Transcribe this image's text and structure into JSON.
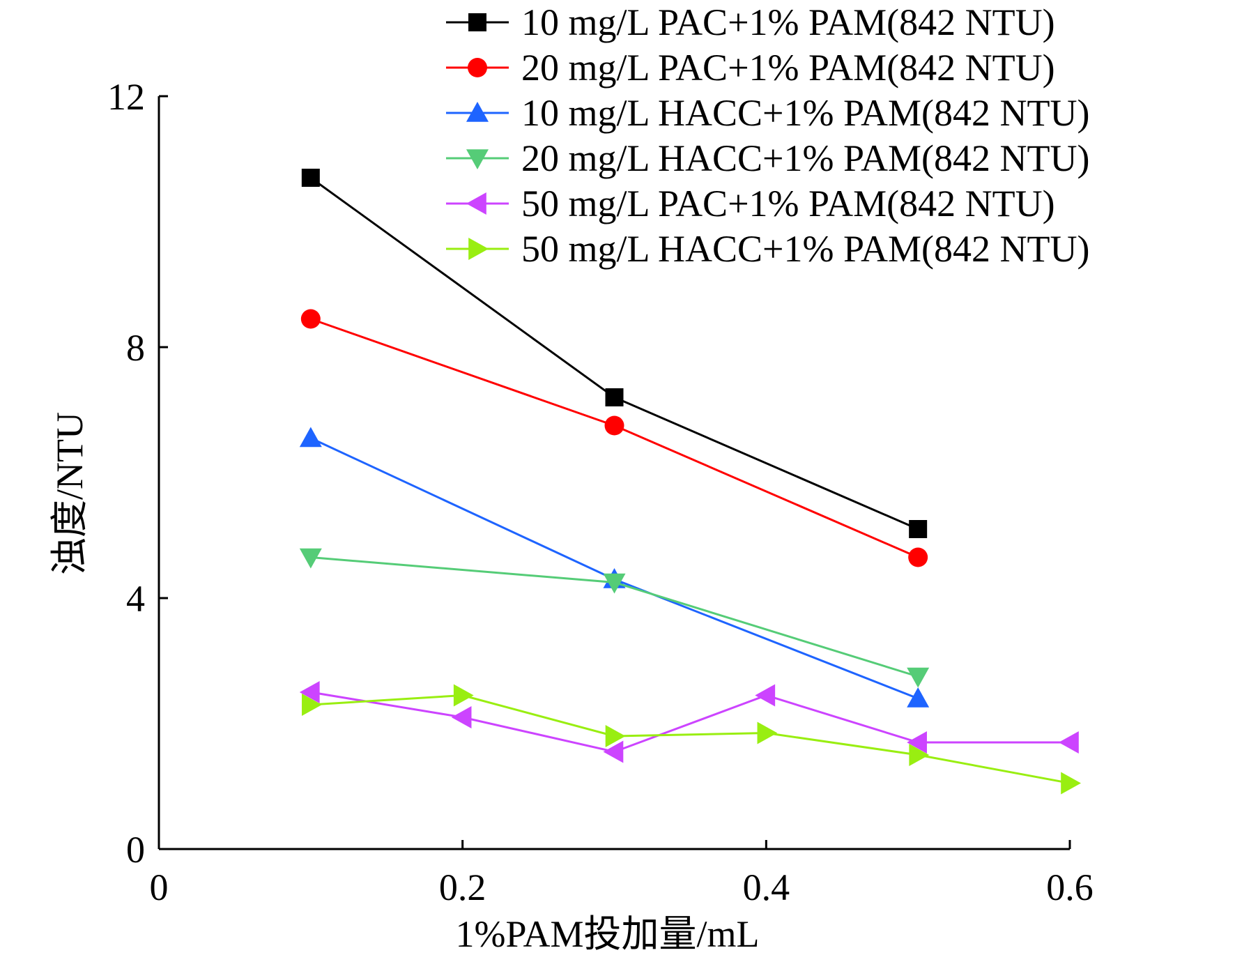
{
  "chart_data": {
    "type": "line",
    "xlabel": "1%PAM投加量/mL",
    "ylabel": "浊度/NTU",
    "xlim": [
      0,
      0.6
    ],
    "ylim": [
      0,
      12
    ],
    "xticks": [
      0,
      0.2,
      0.4,
      0.6
    ],
    "xtick_labels": [
      "0",
      "0.2",
      "0.4",
      "0.6"
    ],
    "yticks": [
      0,
      4,
      8,
      12
    ],
    "ytick_labels": [
      "0",
      "4",
      "8",
      "12"
    ],
    "grid": false,
    "legend_position": "top-right",
    "series": [
      {
        "name": "10 mg/L PAC+1% PAM(842 NTU)",
        "color": "#000000",
        "marker": "square",
        "x": [
          0.1,
          0.3,
          0.5
        ],
        "y": [
          10.7,
          7.2,
          5.1
        ]
      },
      {
        "name": "20 mg/L PAC+1% PAM(842 NTU)",
        "color": "#ff0000",
        "marker": "circle",
        "x": [
          0.1,
          0.3,
          0.5
        ],
        "y": [
          8.45,
          6.75,
          4.65
        ]
      },
      {
        "name": "10 mg/L HACC+1% PAM(842 NTU)",
        "color": "#1e64ff",
        "marker": "triangle-up",
        "x": [
          0.1,
          0.3,
          0.5
        ],
        "y": [
          6.55,
          4.3,
          2.4
        ]
      },
      {
        "name": "20 mg/L HACC+1% PAM(842 NTU)",
        "color": "#55cc77",
        "marker": "triangle-down",
        "x": [
          0.1,
          0.3,
          0.5
        ],
        "y": [
          4.65,
          4.25,
          2.75
        ]
      },
      {
        "name": "50 mg/L PAC+1% PAM(842 NTU)",
        "color": "#cc44ff",
        "marker": "triangle-left",
        "x": [
          0.1,
          0.2,
          0.3,
          0.4,
          0.5,
          0.6
        ],
        "y": [
          2.5,
          2.1,
          1.55,
          2.45,
          1.7,
          1.7
        ]
      },
      {
        "name": "50 mg/L HACC+1% PAM(842 NTU)",
        "color": "#99ee11",
        "marker": "triangle-right",
        "x": [
          0.1,
          0.2,
          0.3,
          0.4,
          0.5,
          0.6
        ],
        "y": [
          2.3,
          2.45,
          1.8,
          1.85,
          1.5,
          1.05
        ]
      }
    ]
  }
}
